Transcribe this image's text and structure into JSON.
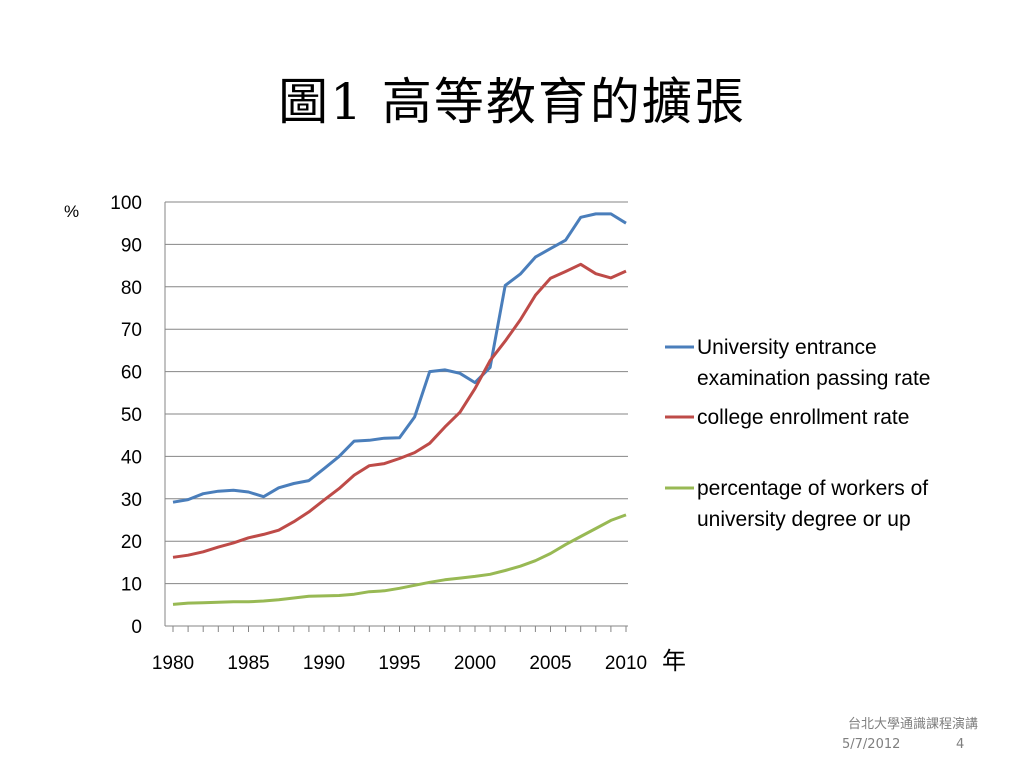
{
  "slide": {
    "title": "圖1  高等教育的擴張",
    "footer_course": "台北大學通識課程演講",
    "footer_date": "5/7/2012",
    "footer_page": "4"
  },
  "chart_data": {
    "type": "line",
    "title": "",
    "xlabel": "年",
    "ylabel": "%",
    "xlim": [
      1980,
      2010
    ],
    "ylim": [
      0,
      100
    ],
    "y_ticks": [
      0,
      10,
      20,
      30,
      40,
      50,
      60,
      70,
      80,
      90,
      100
    ],
    "x_ticks": [
      1980,
      1985,
      1990,
      1995,
      2000,
      2005,
      2010
    ],
    "grid": "horizontal",
    "legend_position": "right",
    "x": [
      1980,
      1981,
      1982,
      1983,
      1984,
      1985,
      1986,
      1987,
      1988,
      1989,
      1990,
      1991,
      1992,
      1993,
      1994,
      1995,
      1996,
      1997,
      1998,
      1999,
      2000,
      2001,
      2002,
      2003,
      2004,
      2005,
      2006,
      2007,
      2008,
      2009,
      2010
    ],
    "series": [
      {
        "name": "University entrance examination passing rate",
        "color": "#4a7ebb",
        "values": [
          29.2,
          29.8,
          31.2,
          31.8,
          32.0,
          31.6,
          30.5,
          32.6,
          33.6,
          34.3,
          37.1,
          40.0,
          43.6,
          43.8,
          44.3,
          44.4,
          49.3,
          60.0,
          60.4,
          59.6,
          57.4,
          61.0,
          80.3,
          83.0,
          87.0,
          89.0,
          91.0,
          96.4,
          97.2,
          97.2,
          95.0
        ]
      },
      {
        "name": "college enrollment rate",
        "color": "#be4b48",
        "values": [
          16.2,
          16.7,
          17.5,
          18.6,
          19.6,
          20.8,
          21.6,
          22.6,
          24.6,
          26.9,
          29.7,
          32.4,
          35.6,
          37.8,
          38.3,
          39.5,
          40.9,
          43.1,
          46.9,
          50.4,
          56.0,
          62.6,
          67.2,
          72.2,
          78.0,
          82.0,
          83.6,
          85.3,
          83.1,
          82.1,
          83.7
        ]
      },
      {
        "name": "percentage of workers of university degree or up",
        "color": "#98b954",
        "values": [
          5.1,
          5.4,
          5.5,
          5.6,
          5.7,
          5.7,
          5.9,
          6.2,
          6.6,
          7.0,
          7.1,
          7.2,
          7.5,
          8.1,
          8.3,
          8.9,
          9.6,
          10.3,
          10.9,
          11.3,
          11.7,
          12.2,
          13.1,
          14.1,
          15.4,
          17.1,
          19.2,
          21.1,
          23.0,
          24.9,
          26.2
        ]
      }
    ]
  }
}
